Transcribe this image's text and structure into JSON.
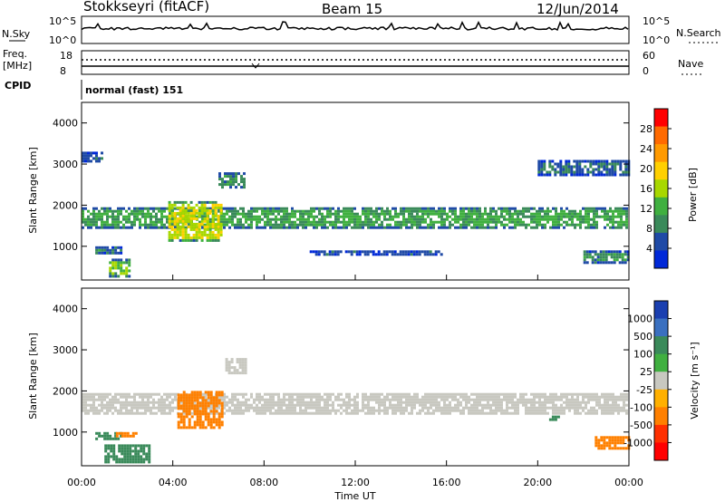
{
  "header": {
    "station": "Stokkseyri (fitACF)",
    "beam": "Beam 15",
    "date": "12/Jun/2014"
  },
  "top_panels": {
    "nsky_label": "N.Sky",
    "nsky_ticks": [
      "10^5",
      "10^0"
    ],
    "nsearch_label": "N.Search",
    "nsearch_ticks": [
      "10^5",
      "10^0"
    ],
    "freq_label_1": "Freq.",
    "freq_label_2": "[MHz]",
    "freq_ticks": [
      "18",
      "8"
    ],
    "nave_label": "Nave",
    "nave_ticks": [
      "60",
      "0"
    ],
    "cpid_label": "CPID",
    "cpid_text": "normal (fast) 151"
  },
  "chart_data": [
    {
      "type": "heatmap",
      "name": "power",
      "xlabel": "",
      "ylabel": "Slant Range [km]",
      "x_ticks": [
        "00:00",
        "04:00",
        "08:00",
        "12:00",
        "16:00",
        "20:00",
        "00:00"
      ],
      "y_ticks": [
        "1000",
        "2000",
        "3000",
        "4000"
      ],
      "ylim": [
        180,
        4500
      ],
      "colorbar_label": "Power [dB]",
      "colorbar_ticks": [
        "28",
        "24",
        "20",
        "16",
        "12",
        "8",
        "4"
      ],
      "colorbar_colors": [
        "#ff0000",
        "#ff6a00",
        "#ff9a00",
        "#ffd000",
        "#a8d800",
        "#40b040",
        "#3a8a5a",
        "#1f4aa6",
        "#0028d8"
      ],
      "bands": [
        {
          "t0": 0.0,
          "t1": 24.0,
          "r0": 1450,
          "r1": 1950,
          "level": 10
        },
        {
          "t0": 0.0,
          "t1": 1.0,
          "r0": 3050,
          "r1": 3300,
          "level": 5
        },
        {
          "t0": 0.6,
          "t1": 1.8,
          "r0": 800,
          "r1": 1000,
          "level": 7
        },
        {
          "t0": 1.2,
          "t1": 2.2,
          "r0": 250,
          "r1": 700,
          "level": 12
        },
        {
          "t0": 3.8,
          "t1": 6.2,
          "r0": 1100,
          "r1": 2100,
          "level": 16
        },
        {
          "t0": 6.0,
          "t1": 7.2,
          "r0": 2400,
          "r1": 2800,
          "level": 8
        },
        {
          "t0": 10.0,
          "t1": 15.8,
          "r0": 800,
          "r1": 900,
          "level": 6
        },
        {
          "t0": 20.0,
          "t1": 24.0,
          "r0": 2700,
          "r1": 3100,
          "level": 5
        },
        {
          "t0": 22.0,
          "t1": 24.0,
          "r0": 600,
          "r1": 900,
          "level": 8
        }
      ]
    },
    {
      "type": "heatmap",
      "name": "velocity",
      "xlabel": "Time UT",
      "ylabel": "Slant Range [km]",
      "x_ticks": [
        "00:00",
        "04:00",
        "08:00",
        "12:00",
        "16:00",
        "20:00",
        "00:00"
      ],
      "y_ticks": [
        "1000",
        "2000",
        "3000",
        "4000"
      ],
      "ylim": [
        180,
        4500
      ],
      "colorbar_label": "Velocity [m s⁻¹]",
      "colorbar_ticks": [
        "1000",
        "500",
        "100",
        "25",
        "-25",
        "-100",
        "-500",
        "-1000"
      ],
      "colorbar_colors": [
        "#1a3fb0",
        "#3a70c0",
        "#3a8a5a",
        "#40b040",
        "#c8c8c0",
        "#ffb000",
        "#ff8000",
        "#ff3000",
        "#ff0000"
      ],
      "bands": [
        {
          "t0": 0.0,
          "t1": 24.0,
          "r0": 1450,
          "r1": 1950,
          "v": 0
        },
        {
          "t0": 0.6,
          "t1": 1.8,
          "r0": 800,
          "r1": 1000,
          "v": 120
        },
        {
          "t0": 1.5,
          "t1": 2.5,
          "r0": 850,
          "r1": 1000,
          "v": -300
        },
        {
          "t0": 4.2,
          "t1": 6.2,
          "r0": 1100,
          "r1": 2000,
          "v": -400
        },
        {
          "t0": 6.3,
          "t1": 7.2,
          "r0": 2400,
          "r1": 2800,
          "v": 0
        },
        {
          "t0": 1.0,
          "t1": 3.0,
          "r0": 250,
          "r1": 700,
          "v": 150
        },
        {
          "t0": 22.5,
          "t1": 24.0,
          "r0": 600,
          "r1": 900,
          "v": -300
        },
        {
          "t0": 20.5,
          "t1": 21.0,
          "r0": 1300,
          "r1": 1400,
          "v": 150
        }
      ]
    }
  ]
}
